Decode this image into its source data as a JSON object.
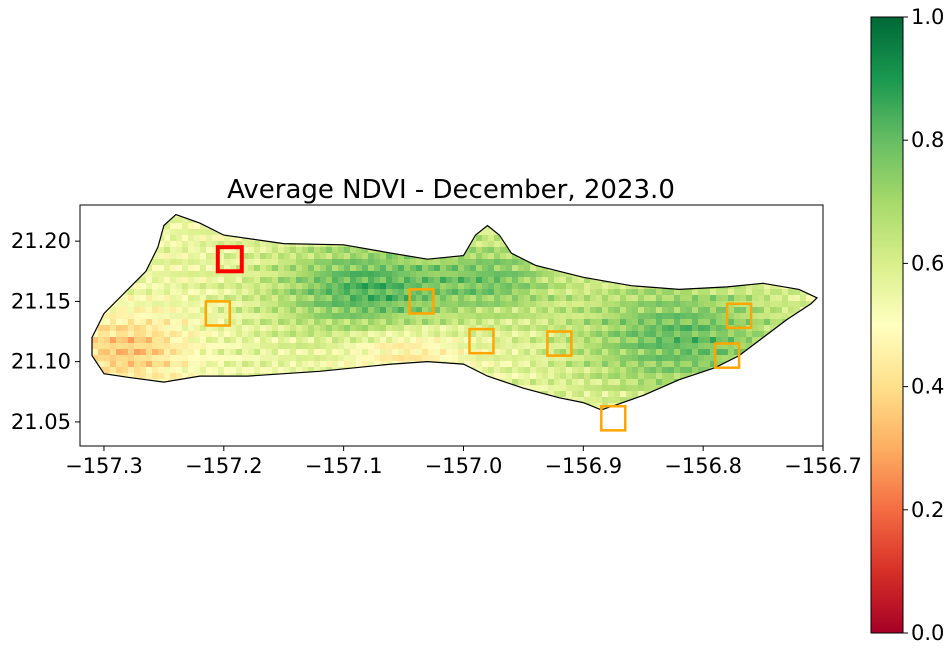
{
  "chart_data": {
    "type": "heatmap",
    "title": "Average NDVI - December, 2023.0",
    "xlabel": "",
    "ylabel": "",
    "xlim": [
      -157.32,
      -156.7
    ],
    "ylim": [
      21.03,
      21.23
    ],
    "xticks": [
      -157.3,
      -157.2,
      -157.1,
      -157.0,
      -156.9,
      -156.8,
      -156.7
    ],
    "xtick_labels": [
      "−157.3",
      "−157.2",
      "−157.1",
      "−157.0",
      "−156.9",
      "−156.8",
      "−156.7"
    ],
    "yticks": [
      21.05,
      21.1,
      21.15,
      21.2
    ],
    "ytick_labels": [
      "21.05",
      "21.10",
      "21.15",
      "21.20"
    ],
    "colorbar": {
      "colormap": "RdYlGn",
      "range": [
        0.0,
        1.0
      ],
      "ticks": [
        0.0,
        0.2,
        0.4,
        0.6,
        0.8,
        1.0
      ],
      "tick_labels": [
        "0.0",
        "0.2",
        "0.4",
        "0.6",
        "0.8",
        "1.0"
      ],
      "stops": [
        "#a50026",
        "#d73027",
        "#f46d43",
        "#fdae61",
        "#fee08b",
        "#ffffbf",
        "#d9ef8b",
        "#a6d96a",
        "#66bd63",
        "#1a9850",
        "#006837"
      ]
    },
    "outline": [
      [
        -157.31,
        21.105
      ],
      [
        -157.3,
        21.09
      ],
      [
        -157.28,
        21.087
      ],
      [
        -157.25,
        21.083
      ],
      [
        -157.22,
        21.088
      ],
      [
        -157.18,
        21.088
      ],
      [
        -157.12,
        21.092
      ],
      [
        -157.06,
        21.098
      ],
      [
        -157.03,
        21.1
      ],
      [
        -157.0,
        21.098
      ],
      [
        -156.98,
        21.088
      ],
      [
        -156.95,
        21.078
      ],
      [
        -156.92,
        21.07
      ],
      [
        -156.9,
        21.066
      ],
      [
        -156.885,
        21.06
      ],
      [
        -156.87,
        21.065
      ],
      [
        -156.85,
        21.072
      ],
      [
        -156.82,
        21.085
      ],
      [
        -156.79,
        21.095
      ],
      [
        -156.77,
        21.105
      ],
      [
        -156.75,
        21.12
      ],
      [
        -156.73,
        21.135
      ],
      [
        -156.71,
        21.148
      ],
      [
        -156.705,
        21.153
      ],
      [
        -156.72,
        21.16
      ],
      [
        -156.75,
        21.165
      ],
      [
        -156.78,
        21.162
      ],
      [
        -156.82,
        21.16
      ],
      [
        -156.86,
        21.163
      ],
      [
        -156.9,
        21.17
      ],
      [
        -156.94,
        21.18
      ],
      [
        -156.96,
        21.19
      ],
      [
        -156.97,
        21.205
      ],
      [
        -156.98,
        21.213
      ],
      [
        -156.99,
        21.205
      ],
      [
        -157.0,
        21.188
      ],
      [
        -157.03,
        21.185
      ],
      [
        -157.06,
        21.19
      ],
      [
        -157.1,
        21.197
      ],
      [
        -157.15,
        21.198
      ],
      [
        -157.2,
        21.205
      ],
      [
        -157.22,
        21.215
      ],
      [
        -157.24,
        21.222
      ],
      [
        -157.25,
        21.213
      ],
      [
        -157.255,
        21.195
      ],
      [
        -157.265,
        21.175
      ],
      [
        -157.28,
        21.16
      ],
      [
        -157.3,
        21.14
      ],
      [
        -157.31,
        21.12
      ],
      [
        -157.31,
        21.105
      ]
    ],
    "annotations": [
      {
        "type": "box",
        "x": [
          -157.205,
          -157.185
        ],
        "y": [
          21.175,
          21.195
        ],
        "color": "#ff0000",
        "role": "highlighted"
      },
      {
        "type": "box",
        "x": [
          -157.215,
          -157.195
        ],
        "y": [
          21.13,
          21.15
        ],
        "color": "#ffa500"
      },
      {
        "type": "box",
        "x": [
          -157.045,
          -157.025
        ],
        "y": [
          21.14,
          21.16
        ],
        "color": "#ffa500"
      },
      {
        "type": "box",
        "x": [
          -156.995,
          -156.975
        ],
        "y": [
          21.107,
          21.127
        ],
        "color": "#ffa500"
      },
      {
        "type": "box",
        "x": [
          -156.93,
          -156.91
        ],
        "y": [
          21.105,
          21.125
        ],
        "color": "#ffa500"
      },
      {
        "type": "box",
        "x": [
          -156.885,
          -156.865
        ],
        "y": [
          21.043,
          21.063
        ],
        "color": "#ffa500"
      },
      {
        "type": "box",
        "x": [
          -156.79,
          -156.77
        ],
        "y": [
          21.095,
          21.115
        ],
        "color": "#ffa500"
      },
      {
        "type": "box",
        "x": [
          -156.78,
          -156.76
        ],
        "y": [
          21.128,
          21.148
        ],
        "color": "#ffa500"
      }
    ],
    "grid": false
  }
}
